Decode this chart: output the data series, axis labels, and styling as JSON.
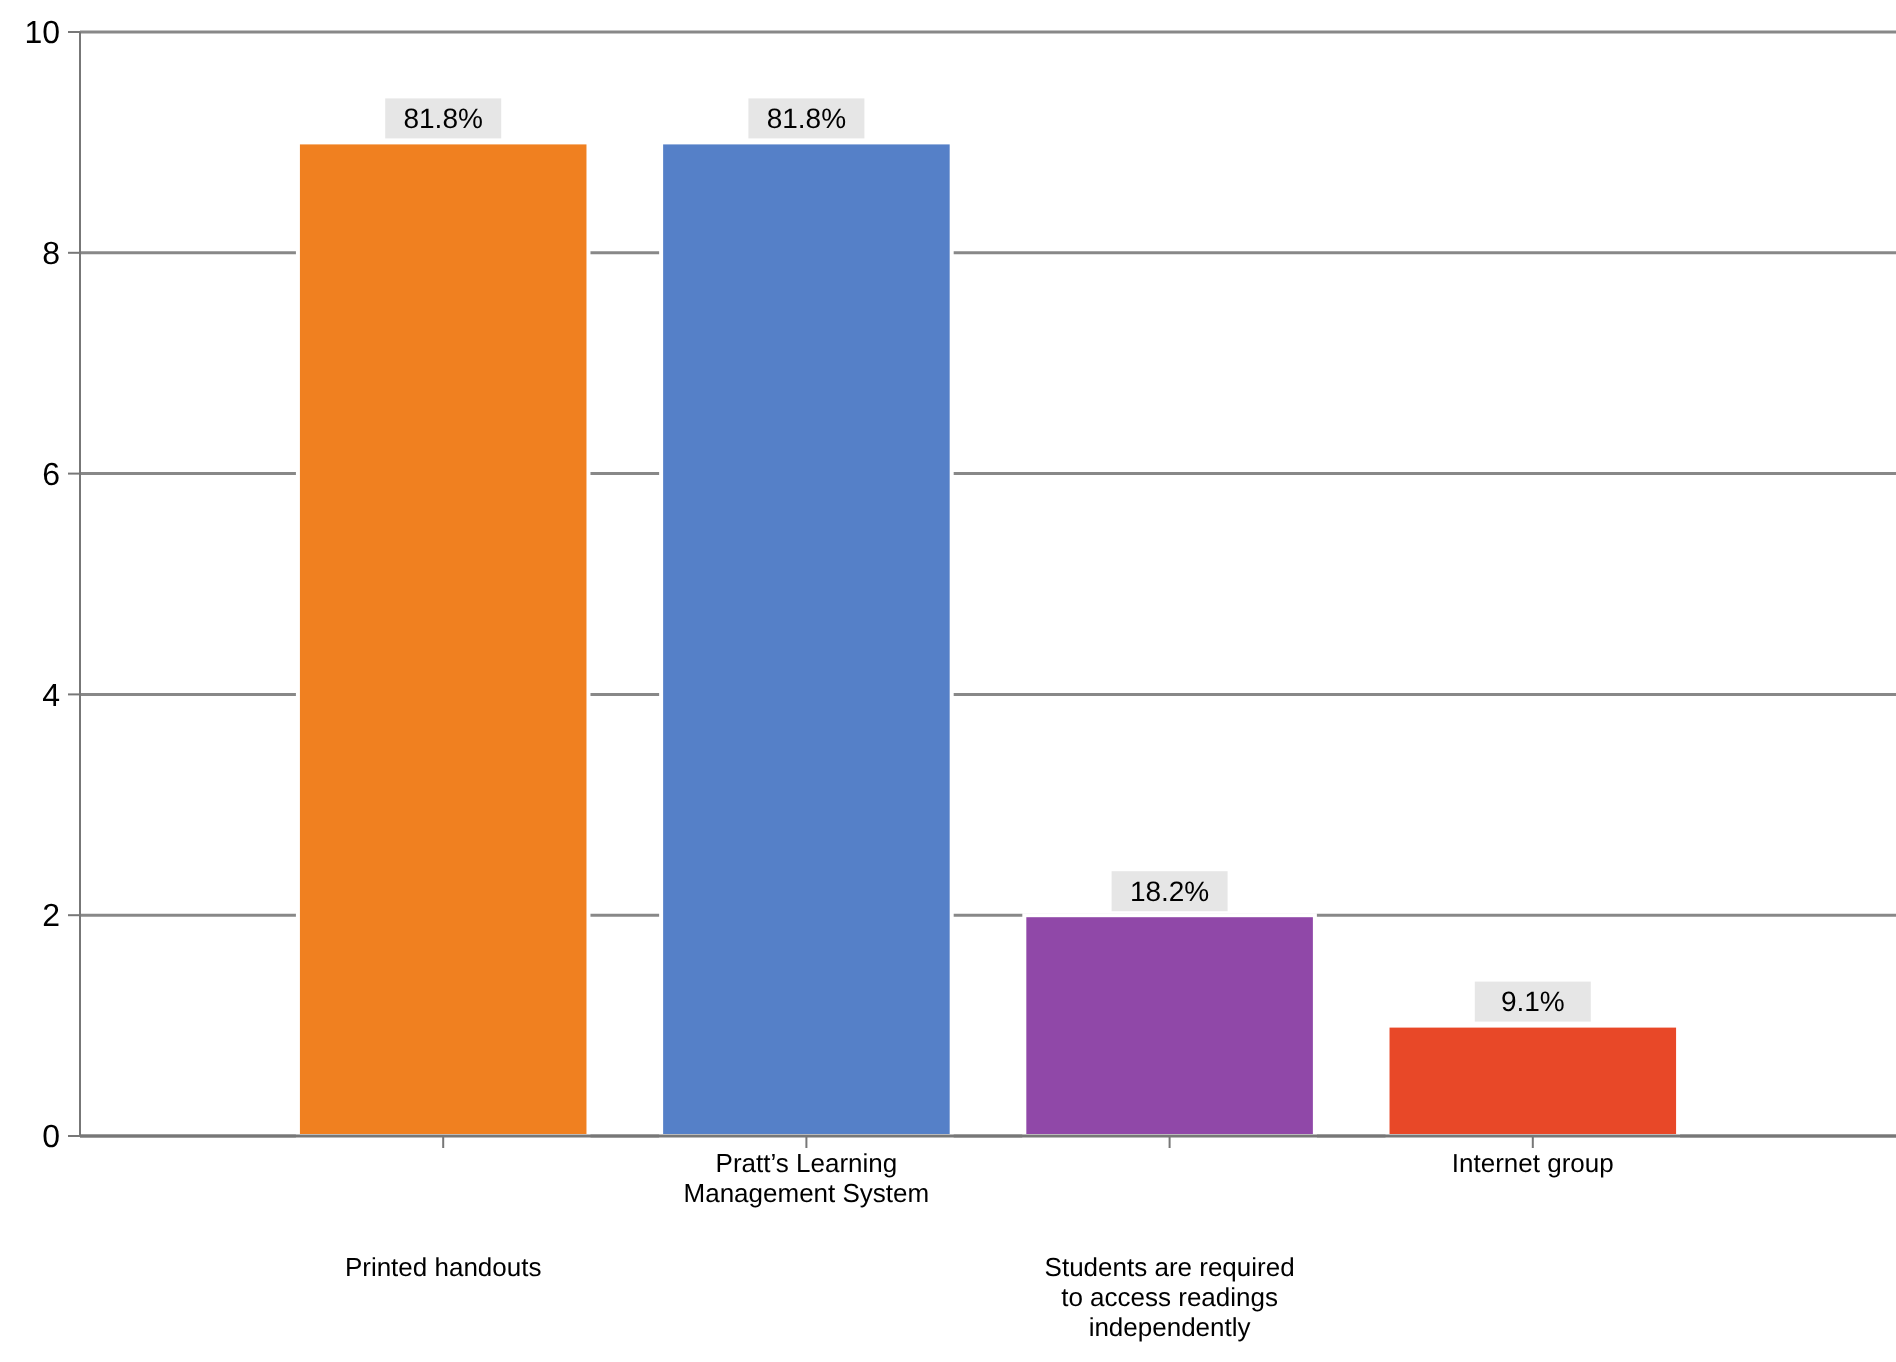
{
  "chart_data": {
    "type": "bar",
    "categories": [
      "Printed handouts",
      "Pratt’s Learning Management System",
      "Students are required to access readings independently",
      "Internet group"
    ],
    "values": [
      9,
      9,
      2,
      1
    ],
    "colors": [
      "#f08020",
      "#5580c8",
      "#9048a8",
      "#e84828"
    ],
    "annotations": [
      {
        "text": "81.8%",
        "x": "Printed handouts",
        "y": 9
      },
      {
        "text": "81.8%",
        "x": "Pratt’s Learning Management System",
        "y": 9
      },
      {
        "text": "18.2%",
        "x": "Students are required to access readings independently",
        "y": 2
      },
      {
        "text": "9.1%",
        "x": "Internet group",
        "y": 1
      }
    ],
    "ylim": [
      0,
      10
    ],
    "yticks": [
      0,
      2,
      4,
      6,
      8,
      10
    ],
    "grid": "y"
  }
}
